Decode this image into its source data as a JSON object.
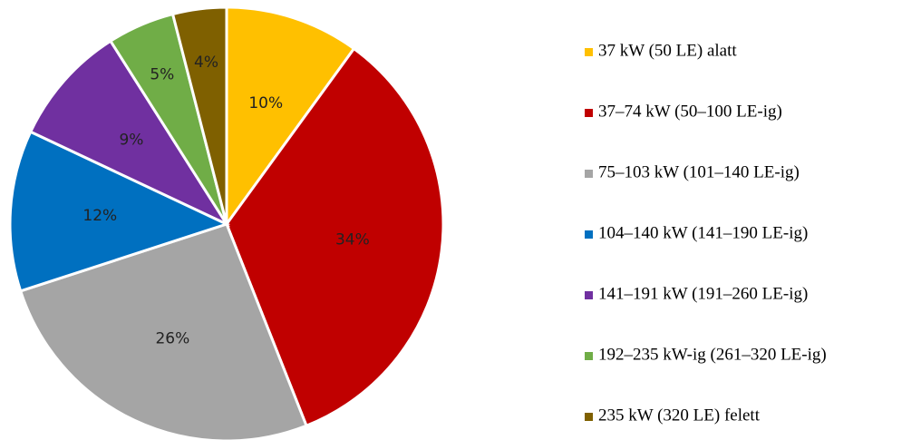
{
  "chart_data": {
    "type": "pie",
    "categories": [
      "37 kW (50 LE) alatt",
      "37–74 kW (50–100 LE-ig)",
      "75–103 kW (101–140 LE-ig)",
      "104–140 kW (141–190 LE-ig)",
      "141–191 kW (191–260 LE-ig)",
      "192–235 kW-ig (261–320 LE-ig)",
      "235 kW (320 LE) felett"
    ],
    "values": [
      10,
      34,
      26,
      12,
      9,
      5,
      4
    ],
    "value_labels": [
      "10%",
      "34%",
      "26%",
      "12%",
      "9%",
      "5%",
      "4%"
    ],
    "colors": [
      "#ffc000",
      "#c00000",
      "#a5a5a5",
      "#0070c0",
      "#7030a0",
      "#70ad47",
      "#7f6000"
    ],
    "legend": "right"
  }
}
